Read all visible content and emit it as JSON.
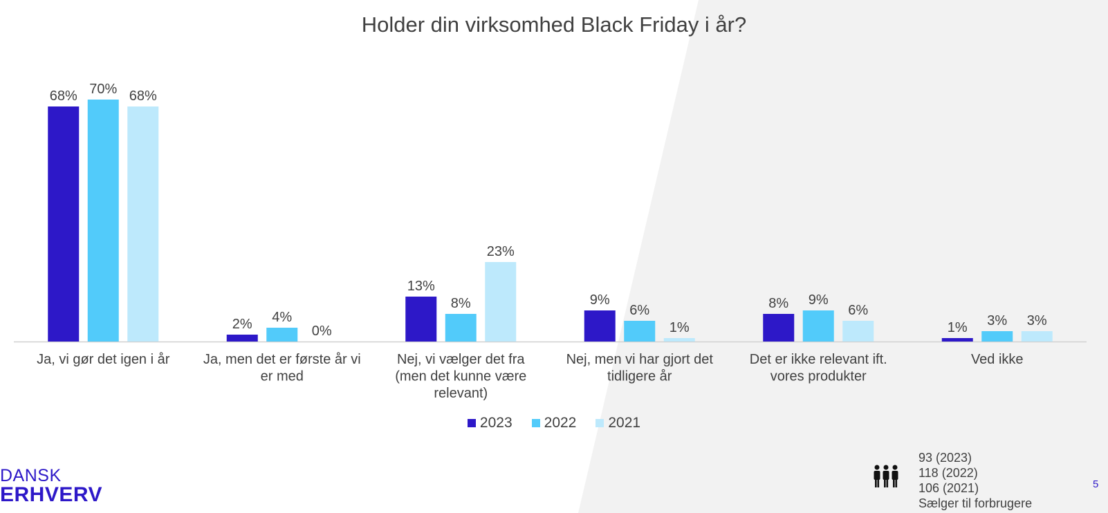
{
  "chart_data": {
    "type": "bar",
    "title": "Holder din virksomhed Black Friday i år?",
    "categories": [
      [
        "Ja, vi gør det igen i år"
      ],
      [
        "Ja, men det er første år vi",
        "er med"
      ],
      [
        "Nej, vi vælger det fra",
        "(men det kunne være",
        "relevant)"
      ],
      [
        "Nej, men vi har gjort det",
        "tidligere år"
      ],
      [
        "Det er ikke relevant ift.",
        "vores produkter"
      ],
      [
        "Ved ikke"
      ]
    ],
    "series": [
      {
        "name": "2023",
        "color": "#2d18c8",
        "values": [
          68,
          2,
          13,
          9,
          8,
          1
        ]
      },
      {
        "name": "2022",
        "color": "#52cbfa",
        "values": [
          70,
          4,
          8,
          6,
          9,
          3
        ]
      },
      {
        "name": "2021",
        "color": "#bde9fc",
        "values": [
          68,
          0,
          23,
          1,
          6,
          3
        ]
      }
    ],
    "value_suffix": "%",
    "ylim": [
      0,
      70
    ],
    "grid": false,
    "legend_position": "bottom"
  },
  "legend_items": [
    {
      "label": "2023",
      "color": "#2d18c8"
    },
    {
      "label": "2022",
      "color": "#52cbfa"
    },
    {
      "label": "2021",
      "color": "#bde9fc"
    }
  ],
  "footer": {
    "logo_line1": "DANSK",
    "logo_line2": "ERHVERV",
    "people_icon": "people-group-icon",
    "sample_lines": [
      "93 (2023)",
      "118 (2022)",
      "106 (2021)",
      "Sælger til forbrugere"
    ],
    "page_number": "5"
  }
}
